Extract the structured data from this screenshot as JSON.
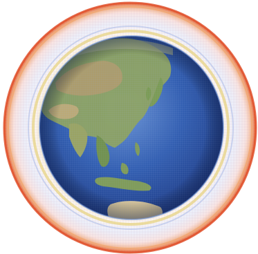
{
  "figure": {
    "subject": "globe-with-atmospheric-shell-grid",
    "colors": {
      "background": "#ffffff",
      "ocean_deep": "#1c3a86",
      "ocean_mid": "#2f5cb0",
      "ocean_light": "#6a93d4",
      "land_green": "#7e9a52",
      "land_brown": "#b39a68",
      "land_light": "#d9c79a",
      "shell_red": "#e0502a",
      "shell_orange": "#f0a068",
      "shell_yellow": "#e6d27a",
      "shell_blue": "#a9b9e8",
      "shell_pink": "#f2c6c0"
    }
  }
}
